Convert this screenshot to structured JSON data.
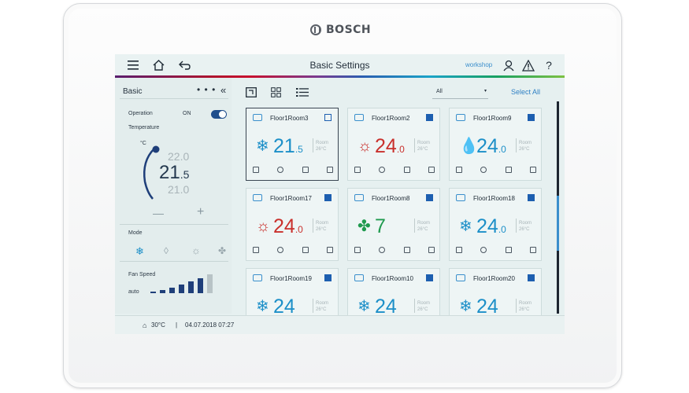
{
  "brand": {
    "name": "BOSCH"
  },
  "header": {
    "title": "Basic Settings",
    "user": "workshop"
  },
  "left_panel": {
    "title": "Basic",
    "more": "• • •",
    "collapse": "«",
    "operation_label": "Operation",
    "operation_value": "ON",
    "temperature_label": "Temperature",
    "unit": "°C",
    "temp_upper": "22.0",
    "temp_current_int": "21",
    "temp_current_dec": ".5",
    "temp_lower": "21.0",
    "minus": "—",
    "plus": "+",
    "mode_label": "Mode",
    "fan_speed_label": "Fan Speed",
    "fan_auto": "auto"
  },
  "toolbar": {
    "filter_value": "All",
    "filter_caret": "▾",
    "select_all": "Select All"
  },
  "cards": [
    {
      "name": "Floor1Room3",
      "temp_int": "21",
      "temp_dec": ".5",
      "mode": "❄",
      "color": "#1c8fc8",
      "selected": true
    },
    {
      "name": "Floor1Room2",
      "temp_int": "24",
      "temp_dec": ".0",
      "mode": "☼",
      "color": "#c9302c",
      "selected": false
    },
    {
      "name": "Floor1Room9",
      "temp_int": "24",
      "temp_dec": ".0",
      "mode": "💧",
      "color": "#1c8fc8",
      "selected": false
    },
    {
      "name": "Floor1Room17",
      "temp_int": "24",
      "temp_dec": ".0",
      "mode": "☼",
      "color": "#c9302c",
      "selected": false
    },
    {
      "name": "Floor1Room8",
      "temp_int": "7",
      "temp_dec": "",
      "mode": "✤",
      "color": "#1f9a4e",
      "selected": false
    },
    {
      "name": "Floor1Room18",
      "temp_int": "24",
      "temp_dec": ".0",
      "mode": "❄",
      "color": "#1c8fc8",
      "selected": false
    },
    {
      "name": "Floor1Room19",
      "temp_int": "24",
      "temp_dec": "",
      "mode": "❄",
      "color": "#1c8fc8",
      "selected": false
    },
    {
      "name": "Floor1Room10",
      "temp_int": "24",
      "temp_dec": "",
      "mode": "❄",
      "color": "#1c8fc8",
      "selected": false
    },
    {
      "name": "Floor1Room20",
      "temp_int": "24",
      "temp_dec": "",
      "mode": "❄",
      "color": "#1c8fc8",
      "selected": false
    }
  ],
  "room_label": "Room",
  "room_temp": "26°C",
  "status": {
    "outdoor": "30°C",
    "divider": "|",
    "datetime": "04.07.2018 07:27"
  }
}
